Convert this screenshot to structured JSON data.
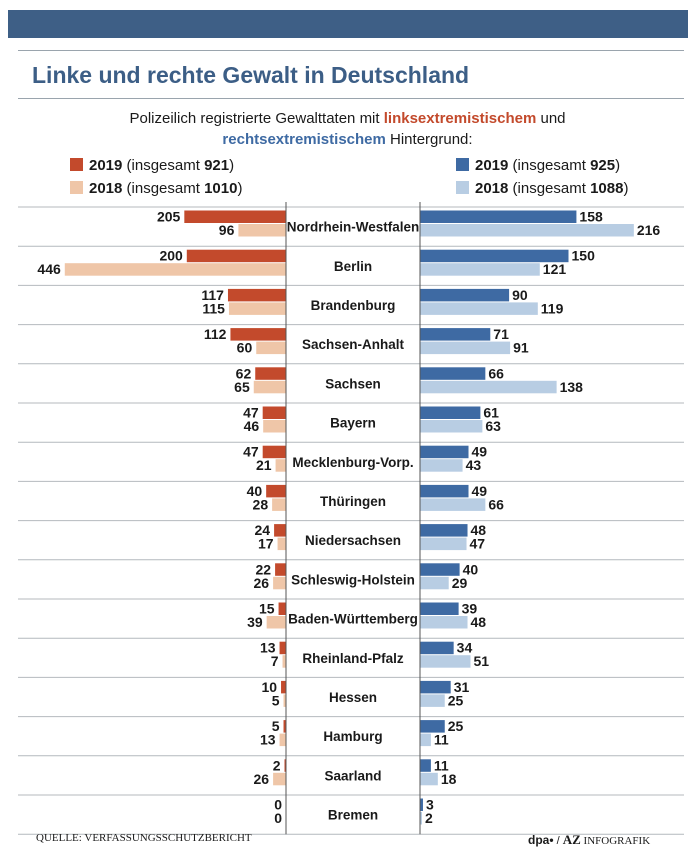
{
  "chart_data": {
    "type": "bar",
    "title": "Linke und rechte Gewalt in Deutschland",
    "subtitle": {
      "pre": "Polizeilich registrierte Gewalttaten mit",
      "left_kw": "linksextremistischem",
      "mid": "und",
      "right_kw": "rechtsextremistischem",
      "post": "Hintergrund:"
    },
    "categories": [
      "Nordrhein-Westfalen",
      "Berlin",
      "Brandenburg",
      "Sachsen-Anhalt",
      "Sachsen",
      "Bayern",
      "Mecklenburg-Vorp.",
      "Thüringen",
      "Niedersachsen",
      "Schleswig-Holstein",
      "Baden-Württemberg",
      "Rheinland-Pfalz",
      "Hessen",
      "Hamburg",
      "Saarland",
      "Bremen"
    ],
    "series": [
      {
        "name": "2019 (insgesamt 921)",
        "year": "2019",
        "label_mid": " (insgesamt ",
        "total": "921",
        "label_end": ")",
        "side": "left",
        "color": "#c34a2c",
        "values": [
          205,
          200,
          117,
          112,
          62,
          47,
          47,
          40,
          24,
          22,
          15,
          13,
          10,
          5,
          2,
          0
        ]
      },
      {
        "name": "2018 (insgesamt 1010)",
        "year": "2018",
        "label_mid": " (insgesamt ",
        "total": "1010",
        "label_end": ")",
        "side": "left",
        "color": "#efc6a8",
        "values": [
          96,
          446,
          115,
          60,
          65,
          46,
          21,
          28,
          17,
          26,
          39,
          7,
          5,
          13,
          26,
          0
        ]
      },
      {
        "name": "2019 (insgesamt 925)",
        "year": "2019",
        "label_mid": " (insgesamt ",
        "total": "925",
        "label_end": ")",
        "side": "right",
        "color": "#3e6aa3",
        "values": [
          158,
          150,
          90,
          71,
          66,
          61,
          49,
          49,
          48,
          40,
          39,
          34,
          31,
          25,
          11,
          3
        ]
      },
      {
        "name": "2018 (insgesamt 1088)",
        "year": "2018",
        "label_mid": " (insgesamt ",
        "total": "1088",
        "label_end": ")",
        "side": "right",
        "color": "#b8cde3",
        "values": [
          216,
          121,
          119,
          91,
          138,
          63,
          43,
          66,
          47,
          29,
          48,
          51,
          25,
          11,
          18,
          2
        ]
      }
    ]
  },
  "footer": {
    "source": "QUELLE: VERFASSUNGSSCHUTZBERICHT",
    "credit_dpa": "dpa•",
    "credit_sep": " / ",
    "credit_az": "AZ",
    "credit_rest": " INFOGRAFIK"
  }
}
